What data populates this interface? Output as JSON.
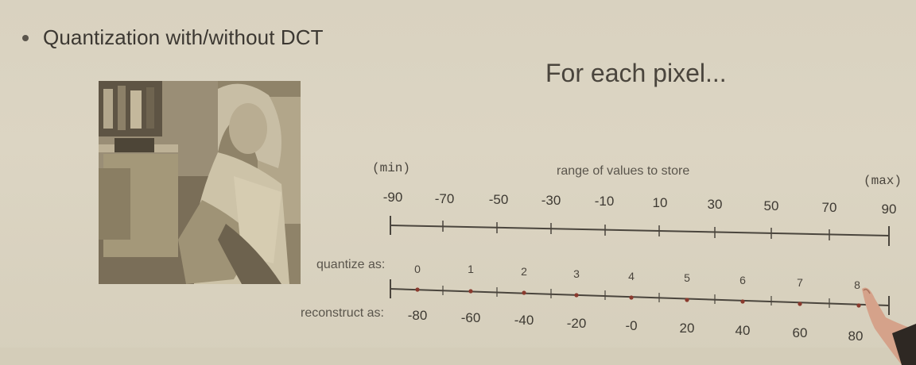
{
  "slide": {
    "bullet": "Quantization with/without DCT",
    "subtitle": "For each pixel...",
    "photo_icon": "grayscale-photo-barbara"
  },
  "range_axis": {
    "min_label": "(min)",
    "max_label": "(max)",
    "caption": "range of values to store",
    "ticks": [
      "-90",
      "-70",
      "-50",
      "-30",
      "-10",
      "10",
      "30",
      "50",
      "70",
      "90"
    ]
  },
  "quantize_axis": {
    "quantize_label": "quantize as:",
    "reconstruct_label": "reconstruct as:",
    "quantize_values": [
      "0",
      "1",
      "2",
      "3",
      "4",
      "5",
      "6",
      "7",
      "8"
    ],
    "reconstruct_values": [
      "-80",
      "-60",
      "-40",
      "-20",
      "-0",
      "20",
      "40",
      "60",
      "80"
    ]
  },
  "colors": {
    "background": "#dcd5c3",
    "text": "#3e3a33",
    "point": "#8a3a2e"
  }
}
